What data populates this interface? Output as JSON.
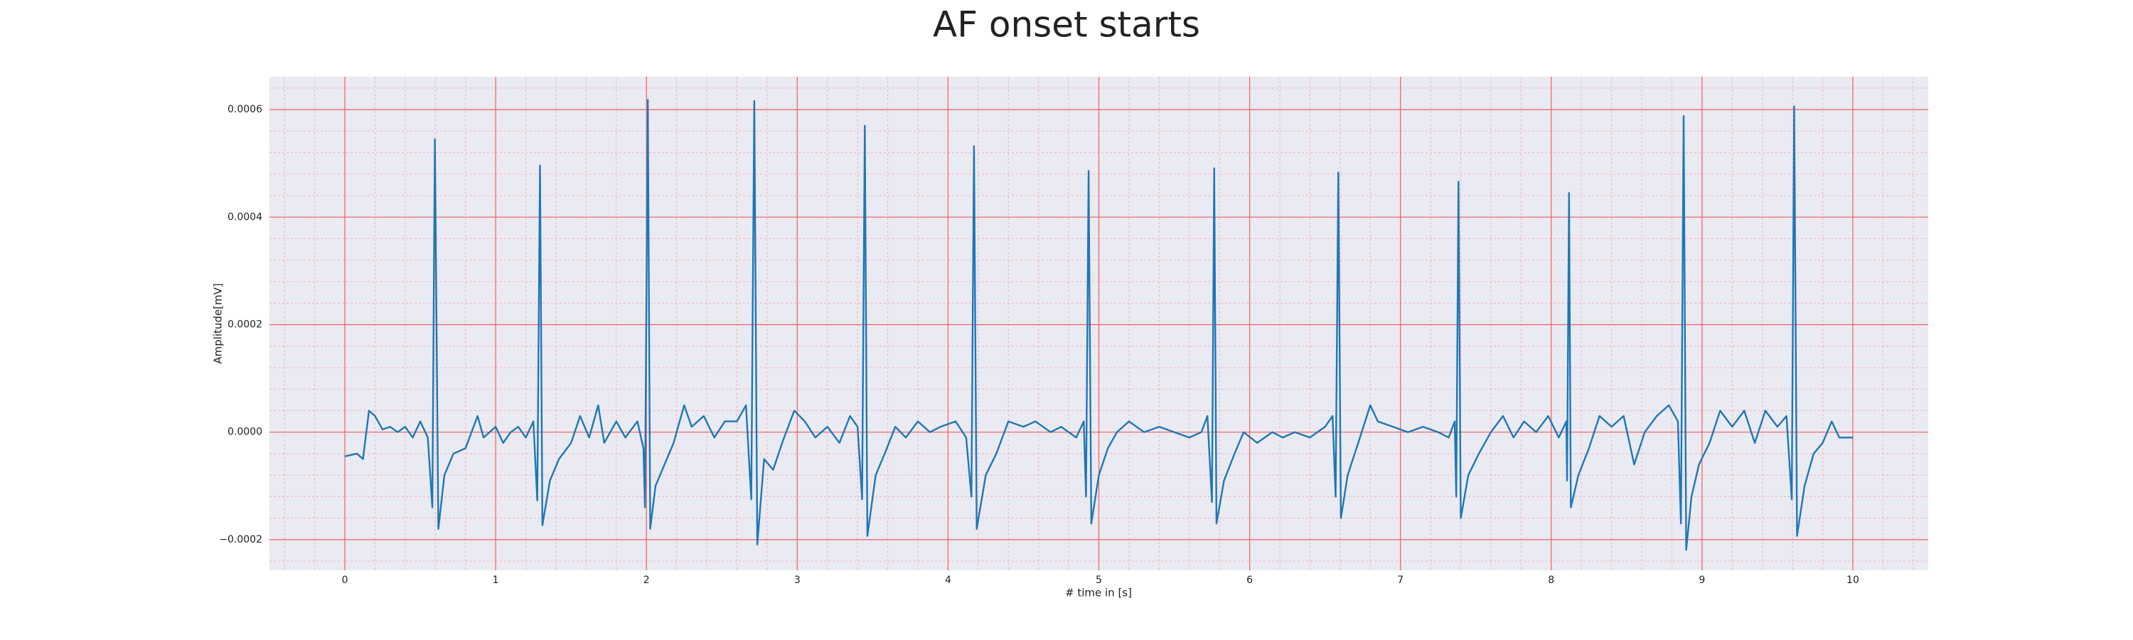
{
  "chart_data": {
    "type": "line",
    "title": "AF onset starts",
    "xlabel": "# time in [s]",
    "ylabel": "Amplitude[mV]",
    "color": "#1f77b4",
    "grid": true,
    "minor_grid": true,
    "xlim": [
      -0.5,
      10.5
    ],
    "ylim": [
      -0.000257,
      0.000661
    ],
    "xticks": [
      0,
      1,
      2,
      3,
      4,
      5,
      6,
      7,
      8,
      9,
      10
    ],
    "yticks": [
      {
        "value": -0.0002,
        "label": "−0.0002"
      },
      {
        "value": 0,
        "label": "0.0000"
      },
      0.0002,
      0.0004,
      0.0006
    ],
    "x": [
      0.0,
      0.08,
      0.12,
      0.16,
      0.2,
      0.25,
      0.3,
      0.35,
      0.4,
      0.45,
      0.5,
      0.55,
      0.58,
      0.597,
      0.62,
      0.66,
      0.72,
      0.8,
      0.88,
      0.92,
      1.0,
      1.05,
      1.1,
      1.15,
      1.2,
      1.25,
      1.276,
      1.294,
      1.31,
      1.36,
      1.42,
      1.5,
      1.56,
      1.62,
      1.68,
      1.72,
      1.8,
      1.86,
      1.94,
      1.98,
      1.99,
      2.009,
      2.025,
      2.06,
      2.12,
      2.18,
      2.25,
      2.3,
      2.38,
      2.45,
      2.52,
      2.6,
      2.66,
      2.695,
      2.715,
      2.735,
      2.78,
      2.84,
      2.9,
      2.98,
      3.05,
      3.12,
      3.2,
      3.28,
      3.35,
      3.4,
      3.43,
      3.448,
      3.465,
      3.52,
      3.58,
      3.65,
      3.72,
      3.8,
      3.88,
      3.95,
      4.05,
      4.12,
      4.155,
      4.172,
      4.19,
      4.25,
      4.32,
      4.4,
      4.5,
      4.58,
      4.68,
      4.75,
      4.85,
      4.9,
      4.915,
      4.932,
      4.95,
      5.0,
      5.06,
      5.12,
      5.2,
      5.3,
      5.4,
      5.5,
      5.6,
      5.68,
      5.72,
      5.75,
      5.765,
      5.78,
      5.83,
      5.9,
      5.96,
      6.05,
      6.15,
      6.22,
      6.3,
      6.4,
      6.5,
      6.55,
      6.57,
      6.588,
      6.605,
      6.65,
      6.72,
      6.8,
      6.85,
      6.95,
      7.05,
      7.15,
      7.25,
      7.32,
      7.36,
      7.37,
      7.385,
      7.4,
      7.45,
      7.52,
      7.6,
      7.68,
      7.75,
      7.82,
      7.9,
      7.98,
      8.05,
      8.1,
      8.105,
      8.118,
      8.13,
      8.18,
      8.25,
      8.32,
      8.4,
      8.48,
      8.55,
      8.62,
      8.7,
      8.78,
      8.84,
      8.86,
      8.878,
      8.895,
      8.93,
      8.98,
      9.05,
      9.12,
      9.2,
      9.28,
      9.35,
      9.42,
      9.5,
      9.56,
      9.595,
      9.611,
      9.63,
      9.68,
      9.74,
      9.8,
      9.86,
      9.91,
      9.96,
      10.0
    ],
    "values": [
      -4.5e-05,
      -4e-05,
      -5e-05,
      4e-05,
      3e-05,
      5e-06,
      1e-05,
      0.0,
      1e-05,
      -1e-05,
      2e-05,
      -1e-05,
      -0.00014,
      0.000545,
      -0.00018,
      -8e-05,
      -4e-05,
      -3e-05,
      3e-05,
      -1e-05,
      1e-05,
      -2e-05,
      0.0,
      1e-05,
      -1e-05,
      2e-05,
      -0.000127,
      0.000496,
      -0.000173,
      -9e-05,
      -5e-05,
      -2e-05,
      3e-05,
      -1e-05,
      5e-05,
      -2e-05,
      2e-05,
      -1e-05,
      2e-05,
      -3e-05,
      -0.00014,
      0.000618,
      -0.00018,
      -0.0001,
      -6e-05,
      -2e-05,
      5e-05,
      1e-05,
      3e-05,
      -1e-05,
      2e-05,
      2e-05,
      5e-05,
      -0.000125,
      0.000616,
      -0.000209,
      -5e-05,
      -7e-05,
      -2e-05,
      4e-05,
      2e-05,
      -1e-05,
      1e-05,
      -2e-05,
      3e-05,
      1e-05,
      -0.000125,
      0.00057,
      -0.000193,
      -8e-05,
      -4e-05,
      1e-05,
      -1e-05,
      2e-05,
      0.0,
      1e-05,
      2e-05,
      -1e-05,
      -0.00012,
      0.000532,
      -0.00018,
      -8e-05,
      -4e-05,
      2e-05,
      1e-05,
      2e-05,
      0.0,
      1e-05,
      -1e-05,
      2e-05,
      -0.00012,
      0.000486,
      -0.00017,
      -8e-05,
      -3e-05,
      0.0,
      2e-05,
      0.0,
      1e-05,
      0.0,
      -1e-05,
      0.0,
      3e-05,
      -0.00013,
      0.000491,
      -0.00017,
      -9e-05,
      -4e-05,
      0.0,
      -2e-05,
      0.0,
      -1e-05,
      0.0,
      -1e-05,
      1e-05,
      3e-05,
      -0.00012,
      0.000483,
      -0.00016,
      -8e-05,
      -2e-05,
      5e-05,
      2e-05,
      1e-05,
      0.0,
      1e-05,
      0.0,
      -1e-05,
      2e-05,
      -0.00012,
      0.000466,
      -0.00016,
      -8e-05,
      -4e-05,
      0.0,
      3e-05,
      -1e-05,
      2e-05,
      0.0,
      3e-05,
      -1e-05,
      2e-05,
      -9e-05,
      0.000445,
      -0.00014,
      -8e-05,
      -3e-05,
      3e-05,
      1e-05,
      3e-05,
      -6e-05,
      0.0,
      3e-05,
      5e-05,
      2e-05,
      -0.00017,
      0.000588,
      -0.000219,
      -0.00012,
      -6e-05,
      -2e-05,
      4e-05,
      1e-05,
      4e-05,
      -2e-05,
      4e-05,
      1e-05,
      3e-05,
      -0.000125,
      0.000606,
      -0.000193,
      -0.0001,
      -4e-05,
      -2e-05,
      2e-05,
      -1e-05,
      -1e-05,
      -1e-05
    ]
  }
}
